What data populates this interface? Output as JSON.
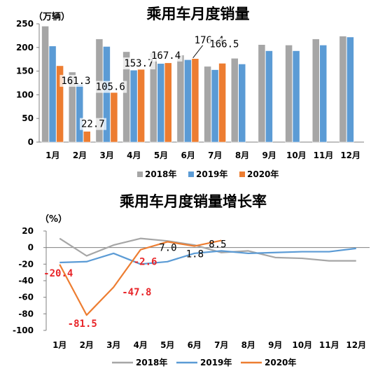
{
  "chart_data": [
    {
      "type": "bar",
      "title": "乘用车月度销量",
      "unit": "（万辆）",
      "categories": [
        "1月",
        "2月",
        "3月",
        "4月",
        "5月",
        "6月",
        "7月",
        "8月",
        "9月",
        "10月",
        "11月",
        "12月"
      ],
      "ylim": [
        0,
        250
      ],
      "yticks": [
        0,
        50,
        100,
        150,
        200,
        250
      ],
      "grid": false,
      "legend_position": "bottom",
      "series": [
        {
          "name": "2018年",
          "color": "#a6a6a6",
          "values": [
            245,
            148,
            218,
            191,
            189,
            184,
            160,
            177,
            206,
            205,
            218,
            224
          ]
        },
        {
          "name": "2019年",
          "color": "#5b9bd5",
          "values": [
            203,
            122,
            202,
            152,
            166,
            174,
            153,
            165,
            193,
            193,
            205,
            222
          ]
        },
        {
          "name": "2020年",
          "color": "#ed7d31",
          "values": [
            161.3,
            22.7,
            105.6,
            153.7,
            167.4,
            176.4,
            166.5,
            null,
            null,
            null,
            null,
            null
          ]
        }
      ],
      "data_labels": [
        {
          "category": "1月",
          "text": "161.3"
        },
        {
          "category": "2月",
          "text": "22.7"
        },
        {
          "category": "3月",
          "text": "105.6"
        },
        {
          "category": "4月",
          "text": "153.7"
        },
        {
          "category": "5月",
          "text": "167.4"
        },
        {
          "category": "6月",
          "text": "176.4"
        },
        {
          "category": "7月",
          "text": "166.5"
        }
      ]
    },
    {
      "type": "line",
      "title": "乘用车月度销量增长率",
      "unit": "（%）",
      "categories": [
        "1月",
        "2月",
        "3月",
        "4月",
        "5月",
        "6月",
        "7月",
        "8月",
        "9月",
        "10月",
        "11月",
        "12月"
      ],
      "ylim": [
        -100,
        20
      ],
      "yticks": [
        -100,
        -80,
        -60,
        -40,
        -20,
        0,
        20
      ],
      "grid": false,
      "legend_position": "bottom",
      "series": [
        {
          "name": "2018年",
          "color": "#a6a6a6",
          "values": [
            11,
            -10,
            3,
            11,
            8,
            3,
            -6,
            -4,
            -12,
            -13,
            -16,
            -16
          ]
        },
        {
          "name": "2019年",
          "color": "#5b9bd5",
          "values": [
            -18,
            -17,
            -7,
            -20,
            -17,
            -7,
            -4,
            -7,
            -6,
            -5,
            -5,
            -1
          ]
        },
        {
          "name": "2020年",
          "color": "#ed7d31",
          "values": [
            -20.4,
            -81.5,
            -47.8,
            -2.6,
            7.0,
            1.8,
            8.5,
            null,
            null,
            null,
            null,
            null
          ]
        }
      ],
      "data_labels": [
        {
          "category": "1月",
          "text": "-20.4",
          "color": "#e8262a"
        },
        {
          "category": "2月",
          "text": "-81.5",
          "color": "#e8262a"
        },
        {
          "category": "3月",
          "text": "-47.8",
          "color": "#e8262a"
        },
        {
          "category": "4月",
          "text": "-2.6",
          "color": "#e8262a"
        },
        {
          "category": "5月",
          "text": "7.0",
          "color": "#000000"
        },
        {
          "category": "6月",
          "text": "1.8",
          "color": "#000000"
        },
        {
          "category": "7月",
          "text": "8.5",
          "color": "#000000"
        }
      ]
    }
  ]
}
